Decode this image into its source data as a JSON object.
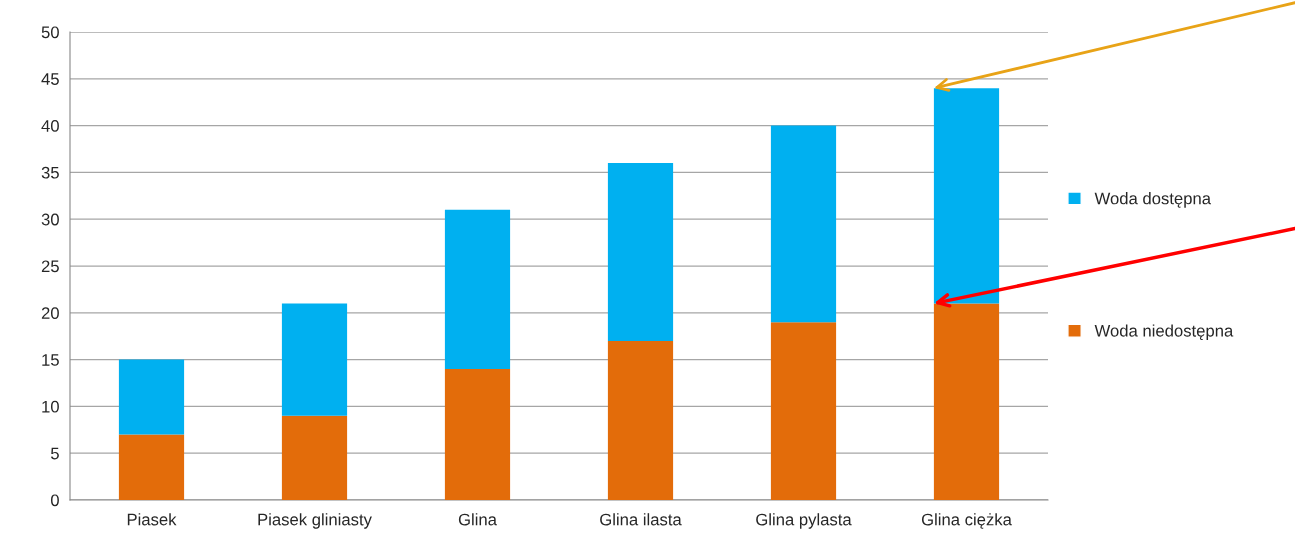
{
  "chart_data": {
    "type": "bar",
    "stacked": true,
    "categories": [
      "Piasek",
      "Piasek gliniasty",
      "Glina",
      "Glina ilasta",
      "Glina pylasta",
      "Glina ciężka"
    ],
    "series": [
      {
        "name": "Woda niedostępna",
        "color": "#e36c0a",
        "values": [
          7,
          9,
          14,
          17,
          19,
          21
        ]
      },
      {
        "name": "Woda dostępna",
        "color": "#00b0f0",
        "values": [
          8,
          12,
          17,
          19,
          21,
          23
        ]
      }
    ],
    "ylim": [
      0,
      50
    ],
    "yticks": [
      0,
      5,
      10,
      15,
      20,
      25,
      30,
      35,
      40,
      45,
      50
    ],
    "grid": "y",
    "legend": "right"
  }
}
